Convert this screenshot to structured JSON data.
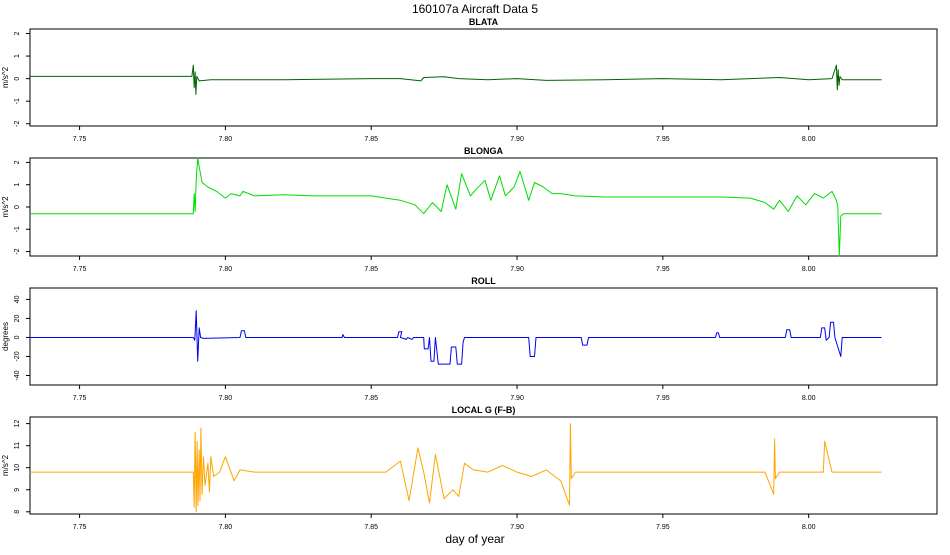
{
  "title": "160107a   Aircraft Data 5",
  "xlabel": "day of year",
  "x_ticks": [
    "7.75",
    "7.80",
    "7.85",
    "7.90",
    "7.95",
    "8.00"
  ],
  "chart_data": [
    {
      "type": "line",
      "title": "BLATA",
      "ylabel": "m/s^2",
      "xlim": [
        7.733,
        8.044
      ],
      "ylim": [
        -2.1,
        2.2
      ],
      "y_ticks": [
        -2,
        -1,
        0,
        1,
        2
      ],
      "color": "#006400",
      "series": [
        {
          "x": [
            7.733,
            7.7885,
            7.789,
            7.7893,
            7.7896,
            7.7899,
            7.7902,
            7.791,
            7.795,
            7.82,
            7.85,
            7.86,
            7.867,
            7.868,
            7.875,
            7.88,
            7.89,
            7.9,
            7.91,
            7.93,
            7.95,
            7.97,
            7.98,
            7.99,
            8.0,
            8.008,
            8.0095,
            8.0098,
            8.0101,
            8.0104,
            8.0107,
            8.0115,
            8.025
          ],
          "values": [
            0.1,
            0.1,
            0.6,
            -0.4,
            0.3,
            -0.7,
            0.1,
            -0.1,
            -0.05,
            -0.05,
            0.0,
            0.0,
            -0.1,
            0.05,
            0.08,
            0.0,
            -0.05,
            0.0,
            -0.08,
            -0.05,
            0.0,
            -0.05,
            0.0,
            0.05,
            -0.05,
            0.0,
            0.6,
            -0.5,
            0.4,
            -0.3,
            0.1,
            -0.05,
            -0.05
          ]
        }
      ]
    },
    {
      "type": "line",
      "title": "BLONGA",
      "ylabel": "m/s^2",
      "xlim": [
        7.733,
        8.044
      ],
      "ylim": [
        -2.2,
        2.2
      ],
      "y_ticks": [
        -2,
        -1,
        0,
        1,
        2
      ],
      "color": "#00dd00",
      "series": [
        {
          "x": [
            7.733,
            7.789,
            7.7893,
            7.7896,
            7.79,
            7.7905,
            7.791,
            7.792,
            7.794,
            7.797,
            7.8,
            7.802,
            7.805,
            7.806,
            7.81,
            7.82,
            7.83,
            7.84,
            7.85,
            7.855,
            7.86,
            7.865,
            7.868,
            7.871,
            7.874,
            7.876,
            7.879,
            7.881,
            7.884,
            7.886,
            7.889,
            7.891,
            7.894,
            7.896,
            7.899,
            7.901,
            7.904,
            7.906,
            7.909,
            7.912,
            7.915,
            7.92,
            7.93,
            7.94,
            7.95,
            7.96,
            7.97,
            7.98,
            7.985,
            7.988,
            7.99,
            7.993,
            7.996,
            7.999,
            8.002,
            8.005,
            8.008,
            8.0095,
            8.01,
            8.0105,
            8.011,
            8.012,
            8.025
          ],
          "values": [
            -0.3,
            -0.3,
            0.6,
            -0.2,
            1.2,
            2.2,
            1.8,
            1.1,
            0.9,
            0.7,
            0.4,
            0.6,
            0.5,
            0.7,
            0.5,
            0.55,
            0.5,
            0.5,
            0.5,
            0.4,
            0.3,
            0.1,
            -0.3,
            0.2,
            -0.2,
            1.0,
            -0.1,
            1.5,
            0.5,
            0.8,
            1.2,
            0.3,
            1.4,
            0.5,
            0.9,
            1.6,
            0.3,
            1.1,
            0.9,
            0.6,
            0.6,
            0.5,
            0.45,
            0.45,
            0.45,
            0.45,
            0.45,
            0.4,
            0.2,
            -0.1,
            0.3,
            -0.2,
            0.5,
            0.1,
            0.6,
            0.4,
            0.7,
            0.3,
            0.0,
            -2.2,
            -0.4,
            -0.3,
            -0.3
          ]
        }
      ]
    },
    {
      "type": "line",
      "title": "ROLL",
      "ylabel": "degrees",
      "xlim": [
        7.733,
        8.044
      ],
      "ylim": [
        -50,
        52
      ],
      "y_ticks": [
        -40,
        -20,
        0,
        20,
        40
      ],
      "color": "#0000ee",
      "series": [
        {
          "x": [
            7.733,
            7.789,
            7.7895,
            7.79,
            7.7905,
            7.791,
            7.7915,
            7.7925,
            7.805,
            7.8055,
            7.8065,
            7.807,
            7.84,
            7.8403,
            7.8408,
            7.859,
            7.8595,
            7.8605,
            7.86,
            7.862,
            7.8625,
            7.864,
            7.8645,
            7.868,
            7.8682,
            7.8695,
            7.87,
            7.8705,
            7.8715,
            7.872,
            7.873,
            7.877,
            7.8775,
            7.879,
            7.8795,
            7.881,
            7.8815,
            7.882,
            7.883,
            7.9,
            7.904,
            7.9045,
            7.906,
            7.9065,
            7.922,
            7.9225,
            7.924,
            7.9245,
            7.968,
            7.9685,
            7.969,
            7.9695,
            7.992,
            7.9925,
            7.9935,
            7.994,
            8.004,
            8.0045,
            8.0055,
            8.006,
            8.007,
            8.0075,
            8.0085,
            8.009,
            8.011,
            8.0115,
            8.012,
            8.025
          ],
          "values": [
            0,
            0,
            -3,
            28,
            -25,
            10,
            0,
            -1,
            0,
            7,
            7,
            0,
            0,
            3,
            0,
            0,
            6,
            6,
            0,
            -2,
            0,
            -2,
            0,
            0,
            -12,
            -12,
            0,
            -25,
            -25,
            0,
            -28,
            -28,
            -10,
            -10,
            -28,
            -28,
            -5,
            0,
            0,
            0,
            0,
            -20,
            -20,
            0,
            0,
            -8,
            -8,
            0,
            0,
            5,
            5,
            0,
            0,
            8,
            8,
            0,
            0,
            10,
            10,
            -3,
            0,
            16,
            16,
            0,
            -20,
            0,
            0,
            0
          ]
        }
      ]
    },
    {
      "type": "line",
      "title": "LOCAL G (F-B)",
      "ylabel": "m/s^2",
      "xlim": [
        7.733,
        8.044
      ],
      "ylim": [
        7.9,
        12.3
      ],
      "y_ticks": [
        8,
        9,
        10,
        11,
        12
      ],
      "color": "#ffa500",
      "series": [
        {
          "x": [
            7.733,
            7.789,
            7.7893,
            7.7896,
            7.79,
            7.7903,
            7.7906,
            7.791,
            7.7913,
            7.7916,
            7.792,
            7.7925,
            7.793,
            7.794,
            7.7945,
            7.795,
            7.796,
            7.798,
            7.8,
            7.803,
            7.805,
            7.81,
            7.82,
            7.83,
            7.84,
            7.85,
            7.855,
            7.86,
            7.863,
            7.866,
            7.868,
            7.87,
            7.872,
            7.875,
            7.878,
            7.88,
            7.882,
            7.885,
            7.89,
            7.895,
            7.9,
            7.905,
            7.91,
            7.915,
            7.918,
            7.9183,
            7.9186,
            7.92,
            7.923,
            7.93,
            7.94,
            7.95,
            7.96,
            7.97,
            7.98,
            7.985,
            7.988,
            7.9883,
            7.9886,
            7.99,
            7.995,
            8.0,
            8.005,
            8.0055,
            8.008,
            8.011,
            8.012,
            8.025
          ],
          "values": [
            9.8,
            9.8,
            8.2,
            11.6,
            8.0,
            11.2,
            8.3,
            10.8,
            8.5,
            11.8,
            8.8,
            10.5,
            9.2,
            10.2,
            8.9,
            10.5,
            9.6,
            9.8,
            10.5,
            9.4,
            9.9,
            9.8,
            9.8,
            9.8,
            9.8,
            9.8,
            9.8,
            10.3,
            8.5,
            10.9,
            9.8,
            8.4,
            10.6,
            8.6,
            9.0,
            8.7,
            10.2,
            9.9,
            9.8,
            10.1,
            9.8,
            9.6,
            9.9,
            9.4,
            8.3,
            12.0,
            9.5,
            9.8,
            9.8,
            9.8,
            9.8,
            9.8,
            9.8,
            9.8,
            9.8,
            9.8,
            8.8,
            11.3,
            9.5,
            9.8,
            9.8,
            9.8,
            9.8,
            11.2,
            9.8,
            9.8,
            9.8,
            9.8
          ]
        }
      ]
    }
  ]
}
